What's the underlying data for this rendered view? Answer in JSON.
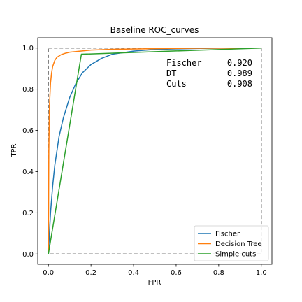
{
  "chart_data": {
    "type": "line",
    "title": "Baseline ROC_curves",
    "xlabel": "FPR",
    "ylabel": "TPR",
    "xlim": [
      -0.05,
      1.05
    ],
    "ylim": [
      -0.05,
      1.05
    ],
    "xticks": [
      "0.0",
      "0.2",
      "0.4",
      "0.6",
      "0.8",
      "1.0"
    ],
    "yticks": [
      "0.0",
      "0.2",
      "0.4",
      "0.6",
      "0.8",
      "1.0"
    ],
    "grid": false,
    "legend_position": "lower-right",
    "series": [
      {
        "name": "Fischer",
        "color": "#1f77b4",
        "x": [
          0.0,
          0.005,
          0.01,
          0.02,
          0.03,
          0.05,
          0.07,
          0.1,
          0.13,
          0.16,
          0.2,
          0.25,
          0.3,
          0.4,
          0.5,
          0.6,
          0.7,
          0.8,
          0.9,
          1.0
        ],
        "y": [
          0.0,
          0.1,
          0.2,
          0.33,
          0.43,
          0.57,
          0.66,
          0.76,
          0.83,
          0.88,
          0.92,
          0.95,
          0.97,
          0.985,
          0.993,
          0.996,
          0.998,
          0.999,
          1.0,
          1.0
        ]
      },
      {
        "name": "Decision Tree",
        "color": "#ff7f0e",
        "x": [
          0.0,
          0.002,
          0.005,
          0.01,
          0.015,
          0.02,
          0.03,
          0.04,
          0.06,
          0.08,
          0.1,
          0.15,
          0.2,
          0.3,
          0.5,
          0.7,
          1.0
        ],
        "y": [
          0.0,
          0.5,
          0.72,
          0.83,
          0.88,
          0.91,
          0.94,
          0.955,
          0.968,
          0.975,
          0.98,
          0.985,
          0.99,
          0.994,
          0.997,
          0.999,
          1.0
        ]
      },
      {
        "name": "Simple cuts",
        "color": "#2ca02c",
        "x": [
          0.0,
          0.155,
          1.0
        ],
        "y": [
          0.0,
          0.97,
          1.0
        ]
      }
    ],
    "scores": [
      {
        "label": "Fischer",
        "value": "0.920"
      },
      {
        "label": "DT",
        "value": "0.989"
      },
      {
        "label": "Cuts",
        "value": "0.908"
      }
    ],
    "reference_box": {
      "x": [
        0,
        1
      ],
      "y": [
        0,
        1
      ],
      "color": "#808080",
      "style": "dashed"
    }
  }
}
